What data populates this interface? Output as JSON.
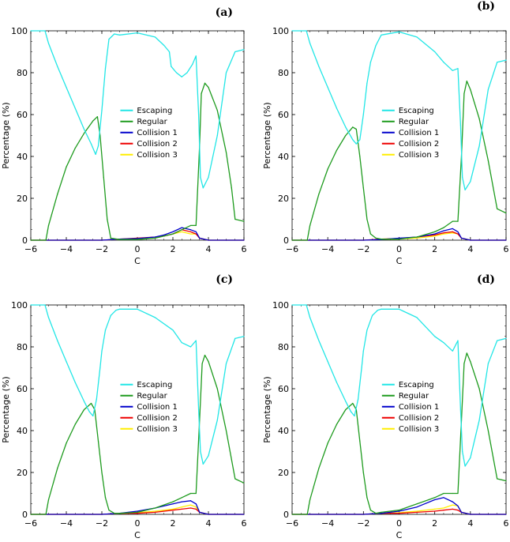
{
  "figure": {
    "panel_labels": [
      "(a)",
      "(b)",
      "(c)",
      "(d)"
    ]
  },
  "colors": {
    "Escaping": "#22e6e6",
    "Regular": "#1e9b1e",
    "Collision 1": "#0000cc",
    "Collision 2": "#ee0000",
    "Collision 3": "#ffee00"
  },
  "chart_data": [
    {
      "type": "line",
      "panel": "(a)",
      "xlabel": "C",
      "ylabel": "Percentage (%)",
      "xlim": [
        -6,
        6
      ],
      "ylim": [
        0,
        100
      ],
      "xticks": [
        -6,
        -4,
        -2,
        0,
        2,
        4,
        6
      ],
      "yticks": [
        0,
        20,
        40,
        60,
        80,
        100
      ],
      "legend": [
        "Escaping",
        "Regular",
        "Collision 1",
        "Collision 2",
        "Collision 3"
      ],
      "series": [
        {
          "name": "Escaping",
          "x": [
            -6,
            -5.2,
            -5,
            -4.5,
            -4,
            -3.5,
            -3,
            -2.6,
            -2.35,
            -2.2,
            -2,
            -1.8,
            -1.6,
            -1.3,
            -1,
            0,
            1,
            1.5,
            1.8,
            1.9,
            2,
            2.2,
            2.5,
            2.8,
            3.1,
            3.3,
            3.45,
            3.55,
            3.7,
            4,
            4.5,
            5,
            5.5,
            6
          ],
          "values": [
            100,
            100,
            94,
            83,
            73,
            63,
            53,
            46,
            41,
            45,
            62,
            82,
            96,
            98.5,
            98,
            99,
            97,
            93,
            90,
            83,
            82,
            80,
            78,
            80,
            84,
            88,
            60,
            30,
            25,
            30,
            50,
            80,
            90,
            91
          ]
        },
        {
          "name": "Regular",
          "x": [
            -6,
            -5.15,
            -5,
            -4.5,
            -4,
            -3.5,
            -3,
            -2.5,
            -2.25,
            -2.1,
            -1.9,
            -1.7,
            -1.5,
            -1,
            0,
            1,
            2,
            2.5,
            3,
            3.3,
            3.5,
            3.6,
            3.8,
            4,
            4.5,
            5,
            5.3,
            5.5,
            6
          ],
          "values": [
            0,
            0,
            7,
            22,
            35,
            44,
            51,
            57,
            59,
            50,
            30,
            10,
            1,
            0.3,
            0.3,
            1,
            3,
            5,
            7,
            7,
            45,
            70,
            75,
            73,
            62,
            42,
            25,
            10,
            9
          ]
        },
        {
          "name": "Collision 1",
          "x": [
            -6,
            -2,
            -1,
            0,
            1,
            1.5,
            2,
            2.5,
            3,
            3.3,
            3.5,
            4,
            5,
            6
          ],
          "values": [
            0,
            0,
            0.5,
            0.8,
            1.5,
            2.5,
            4,
            6,
            5,
            4,
            1,
            0,
            0,
            0
          ]
        },
        {
          "name": "Collision 2",
          "x": [
            -6,
            -2,
            -1,
            0,
            1,
            1.5,
            2,
            2.5,
            3,
            3.3,
            3.5,
            4,
            5,
            6
          ],
          "values": [
            0,
            0,
            0.5,
            1,
            1.5,
            2,
            3,
            5,
            4,
            3,
            1,
            0,
            0,
            0
          ]
        },
        {
          "name": "Collision 3",
          "x": [
            -6,
            -2,
            -1,
            0,
            1,
            1.5,
            2,
            2.5,
            3,
            3.3,
            3.5,
            4,
            5,
            6
          ],
          "values": [
            0,
            0,
            0.4,
            0.6,
            1,
            2,
            3,
            4,
            3,
            3,
            1,
            0,
            0,
            0
          ]
        }
      ]
    },
    {
      "type": "line",
      "panel": "(b)",
      "xlabel": "C",
      "ylabel": "Percentage (%)",
      "xlim": [
        -6,
        6
      ],
      "ylim": [
        0,
        100
      ],
      "xticks": [
        -6,
        -4,
        -2,
        0,
        2,
        4,
        6
      ],
      "yticks": [
        0,
        20,
        40,
        60,
        80,
        100
      ],
      "legend": [
        "Escaping",
        "Regular",
        "Collision 1",
        "Collision 2",
        "Collision 3"
      ],
      "series": [
        {
          "name": "Escaping",
          "x": [
            -6,
            -5.2,
            -5,
            -4.5,
            -4,
            -3.5,
            -3,
            -2.6,
            -2.4,
            -2.2,
            -2,
            -1.8,
            -1.6,
            -1.3,
            -1,
            0,
            1,
            2,
            2.5,
            3,
            3.3,
            3.45,
            3.55,
            3.7,
            4,
            4.5,
            5,
            5.5,
            6
          ],
          "values": [
            100,
            100,
            94,
            83,
            73,
            63,
            54,
            48,
            46,
            48,
            60,
            75,
            85,
            93,
            98,
            99.5,
            97,
            90,
            85,
            81,
            82,
            55,
            30,
            24,
            28,
            45,
            72,
            85,
            86
          ]
        },
        {
          "name": "Regular",
          "x": [
            -6,
            -5.15,
            -5,
            -4.5,
            -4,
            -3.5,
            -3,
            -2.6,
            -2.4,
            -2.2,
            -2,
            -1.8,
            -1.6,
            -1.3,
            -1,
            0,
            1,
            2,
            2.5,
            3,
            3.3,
            3.5,
            3.65,
            3.8,
            4,
            4.5,
            5,
            5.5,
            6
          ],
          "values": [
            0,
            0,
            7,
            22,
            34,
            43,
            50,
            54,
            53,
            40,
            25,
            10,
            3,
            1,
            0.5,
            0.5,
            1.5,
            4,
            6,
            9,
            9,
            40,
            70,
            76,
            72,
            58,
            38,
            15,
            13
          ]
        },
        {
          "name": "Collision 1",
          "x": [
            -6,
            -2,
            -1,
            0,
            1,
            2,
            2.5,
            3,
            3.3,
            3.5,
            4,
            5,
            6
          ],
          "values": [
            0,
            0,
            0.3,
            1,
            1.5,
            3,
            4.5,
            5.5,
            4,
            1,
            0,
            0,
            0
          ]
        },
        {
          "name": "Collision 2",
          "x": [
            -6,
            -2,
            -1,
            0,
            1,
            2,
            2.5,
            3,
            3.3,
            3.5,
            4,
            5,
            6
          ],
          "values": [
            0,
            0,
            0.5,
            0.8,
            1.5,
            2.5,
            3.5,
            4,
            3,
            1,
            0,
            0,
            0
          ]
        },
        {
          "name": "Collision 3",
          "x": [
            -6,
            -2,
            -1,
            0,
            1,
            2,
            2.5,
            3,
            3.3,
            3.5,
            4,
            5,
            6
          ],
          "values": [
            0,
            0,
            0.4,
            0.6,
            1,
            2,
            3,
            3.5,
            3,
            1,
            0,
            0,
            0
          ]
        }
      ]
    },
    {
      "type": "line",
      "panel": "(c)",
      "xlabel": "C",
      "ylabel": "Percentage (%)",
      "xlim": [
        -6,
        6
      ],
      "ylim": [
        0,
        100
      ],
      "xticks": [
        -6,
        -4,
        -2,
        0,
        2,
        4,
        6
      ],
      "yticks": [
        0,
        20,
        40,
        60,
        80,
        100
      ],
      "legend": [
        "Escaping",
        "Regular",
        "Collision 1",
        "Collision 2",
        "Collision 3"
      ],
      "series": [
        {
          "name": "Escaping",
          "x": [
            -6,
            -5.2,
            -5,
            -4.5,
            -4,
            -3.5,
            -3,
            -2.7,
            -2.5,
            -2.3,
            -2.1,
            -2,
            -1.8,
            -1.5,
            -1.2,
            -1,
            0,
            1,
            2,
            2.5,
            3,
            3.3,
            3.45,
            3.55,
            3.7,
            4,
            4.5,
            5,
            5.5,
            6
          ],
          "values": [
            100,
            100,
            94,
            83,
            73,
            63,
            54,
            49,
            47,
            55,
            70,
            78,
            88,
            95,
            97.5,
            98,
            98,
            94,
            88,
            82,
            80,
            83,
            50,
            30,
            24,
            28,
            45,
            72,
            84,
            85
          ]
        },
        {
          "name": "Regular",
          "x": [
            -6,
            -5.15,
            -5,
            -4.5,
            -4,
            -3.5,
            -3,
            -2.6,
            -2.4,
            -2.2,
            -2,
            -1.8,
            -1.6,
            -1.3,
            -1,
            0,
            1,
            2,
            2.5,
            3,
            3.3,
            3.5,
            3.65,
            3.8,
            4,
            4.5,
            5,
            5.5,
            6
          ],
          "values": [
            0,
            0,
            7,
            22,
            34,
            43,
            50,
            53,
            50,
            35,
            20,
            8,
            2,
            0.5,
            0.5,
            1,
            3,
            6,
            8,
            10,
            10,
            45,
            72,
            76,
            73,
            60,
            40,
            17,
            15
          ]
        },
        {
          "name": "Collision 1",
          "x": [
            -6,
            -2,
            -1,
            0,
            1,
            2,
            2.5,
            3,
            3.3,
            3.5,
            4,
            5,
            6
          ],
          "values": [
            0,
            0,
            0.5,
            1.5,
            3,
            5,
            6,
            6.5,
            5,
            1,
            0,
            0,
            0
          ]
        },
        {
          "name": "Collision 2",
          "x": [
            -6,
            -2,
            -1,
            0,
            1,
            2,
            2.5,
            3,
            3.3,
            3.5,
            4,
            5,
            6
          ],
          "values": [
            0,
            0,
            0.5,
            0.5,
            1,
            2,
            2.5,
            3,
            2.5,
            1,
            0,
            0,
            0
          ]
        },
        {
          "name": "Collision 3",
          "x": [
            -6,
            -2,
            -1,
            0,
            1,
            2,
            2.5,
            3,
            3.3,
            3.5,
            4,
            5,
            6
          ],
          "values": [
            0,
            0,
            0.4,
            0.8,
            1.5,
            2.5,
            3.5,
            4.5,
            3.5,
            1,
            0,
            0,
            0
          ]
        }
      ]
    },
    {
      "type": "line",
      "panel": "(d)",
      "xlabel": "C",
      "ylabel": "Percentage (%)",
      "xlim": [
        -6,
        6
      ],
      "ylim": [
        0,
        100
      ],
      "xticks": [
        -6,
        -4,
        -2,
        0,
        2,
        4,
        6
      ],
      "yticks": [
        0,
        20,
        40,
        60,
        80,
        100
      ],
      "legend": [
        "Escaping",
        "Regular",
        "Collision 1",
        "Collision 2",
        "Collision 3"
      ],
      "series": [
        {
          "name": "Escaping",
          "x": [
            -6,
            -5.2,
            -5,
            -4.5,
            -4,
            -3.5,
            -3,
            -2.7,
            -2.5,
            -2.3,
            -2.1,
            -2,
            -1.8,
            -1.5,
            -1.2,
            -1,
            0,
            1,
            2,
            2.5,
            3,
            3.3,
            3.45,
            3.55,
            3.7,
            4,
            4.5,
            5,
            5.5,
            6
          ],
          "values": [
            100,
            100,
            94,
            83,
            73,
            63,
            54,
            49,
            47,
            55,
            70,
            78,
            88,
            95,
            97.5,
            98,
            98,
            94,
            85,
            82,
            78,
            83,
            50,
            30,
            23,
            27,
            45,
            72,
            83,
            84
          ]
        },
        {
          "name": "Regular",
          "x": [
            -6,
            -5.15,
            -5,
            -4.5,
            -4,
            -3.5,
            -3,
            -2.6,
            -2.4,
            -2.2,
            -2,
            -1.8,
            -1.6,
            -1.3,
            -1,
            0,
            1,
            2,
            2.5,
            3,
            3.3,
            3.5,
            3.65,
            3.8,
            4,
            4.5,
            5,
            5.5,
            6
          ],
          "values": [
            0,
            0,
            7,
            22,
            34,
            43,
            50,
            53,
            50,
            35,
            20,
            8,
            2,
            0.5,
            1,
            2,
            5,
            8,
            10,
            10,
            10,
            45,
            72,
            77,
            73,
            60,
            40,
            17,
            16
          ]
        },
        {
          "name": "Collision 1",
          "x": [
            -6,
            -2,
            -1,
            0,
            1,
            2,
            2.5,
            3,
            3.3,
            3.5,
            4,
            5,
            6
          ],
          "values": [
            0,
            0,
            0.5,
            1.5,
            3.5,
            7,
            8,
            6,
            4,
            1,
            0,
            0,
            0
          ]
        },
        {
          "name": "Collision 2",
          "x": [
            -6,
            -2,
            -1,
            0,
            1,
            2,
            2.5,
            3,
            3.3,
            3.5,
            4,
            5,
            6
          ],
          "values": [
            0,
            0,
            0.5,
            0.5,
            1,
            1.5,
            2,
            2.5,
            2,
            1,
            0,
            0,
            0
          ]
        },
        {
          "name": "Collision 3",
          "x": [
            -6,
            -2,
            -1,
            0,
            1,
            2,
            2.5,
            3,
            3.3,
            3.5,
            4,
            5,
            6
          ],
          "values": [
            0,
            0,
            0.4,
            0.8,
            1.5,
            2.5,
            3,
            4.5,
            4,
            1,
            0,
            0,
            0
          ]
        }
      ]
    }
  ]
}
